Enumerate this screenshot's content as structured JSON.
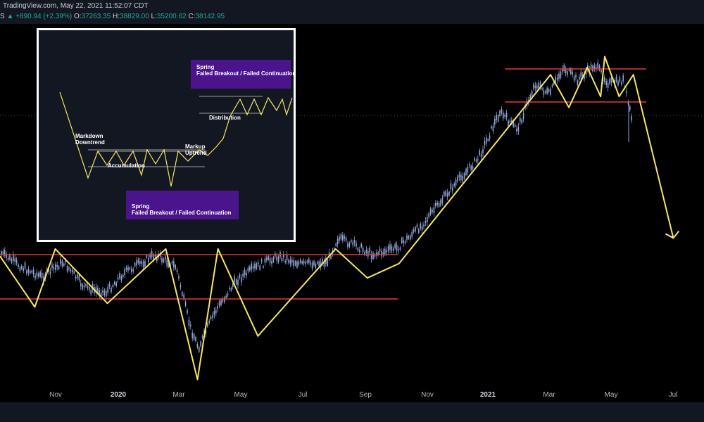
{
  "header": {
    "source": "TradingView.com, May 22, 2021 11:52:07 CDT",
    "change_prefix": "S",
    "change_arrow": "▲",
    "change": "+890.94 (+2.39%)",
    "open_label": "O:",
    "open": "37263.35",
    "high_label": "H:",
    "high": "38829.00",
    "low_label": "L:",
    "low": "35200.62",
    "close_label": "C:",
    "close": "38142.95"
  },
  "time_axis": [
    {
      "label": "Nov",
      "major": false
    },
    {
      "label": "2020",
      "major": true
    },
    {
      "label": "Mar",
      "major": false
    },
    {
      "label": "May",
      "major": false
    },
    {
      "label": "Jul",
      "major": false
    },
    {
      "label": "Sep",
      "major": false
    },
    {
      "label": "Nov",
      "major": false
    },
    {
      "label": "2021",
      "major": true
    },
    {
      "label": "Mar",
      "major": false
    },
    {
      "label": "May",
      "major": false
    },
    {
      "label": "Jul",
      "major": false
    }
  ],
  "inset": {
    "labels": {
      "markdown": "Markdown",
      "downtrend": "Downtrend",
      "accumulation": "Accumulation",
      "markup": "Markup",
      "uptrend": "Uptrend",
      "distribution": "Distribution",
      "spring_top": "Spring",
      "spring_top_sub": "Failed Breakout / Failed Continuation",
      "spring_bottom": "Spring",
      "spring_bottom_sub": "Failed Breakout / Failed Continuation"
    }
  },
  "colors": {
    "candle": "#90a4d8",
    "zigzag": "#f5e663",
    "level": "#e53935",
    "inset_box": "#4a148c"
  },
  "chart_data": {
    "type": "candlestick",
    "note_levels": [
      "support",
      "resistance"
    ],
    "x_range": [
      "2019-09",
      "2021-07"
    ],
    "zigzag_points": [
      [
        "2019-09-01",
        0.64
      ],
      [
        "2019-10-05",
        0.78
      ],
      [
        "2019-10-25",
        0.62
      ],
      [
        "2019-12-15",
        0.77
      ],
      [
        "2020-02-10",
        0.62
      ],
      [
        "2020-03-12",
        0.98
      ],
      [
        "2020-04-01",
        0.62
      ],
      [
        "2020-05-10",
        0.86
      ],
      [
        "2020-07-25",
        0.62
      ],
      [
        "2020-08-25",
        0.7
      ],
      [
        "2020-09-25",
        0.66
      ],
      [
        "2021-02-20",
        0.14
      ],
      [
        "2021-03-10",
        0.23
      ],
      [
        "2021-03-28",
        0.12
      ],
      [
        "2021-04-10",
        0.2
      ],
      [
        "2021-04-14",
        0.09
      ],
      [
        "2021-04-28",
        0.2
      ],
      [
        "2021-05-12",
        0.14
      ],
      [
        "2021-06-20",
        0.59
      ]
    ]
  }
}
